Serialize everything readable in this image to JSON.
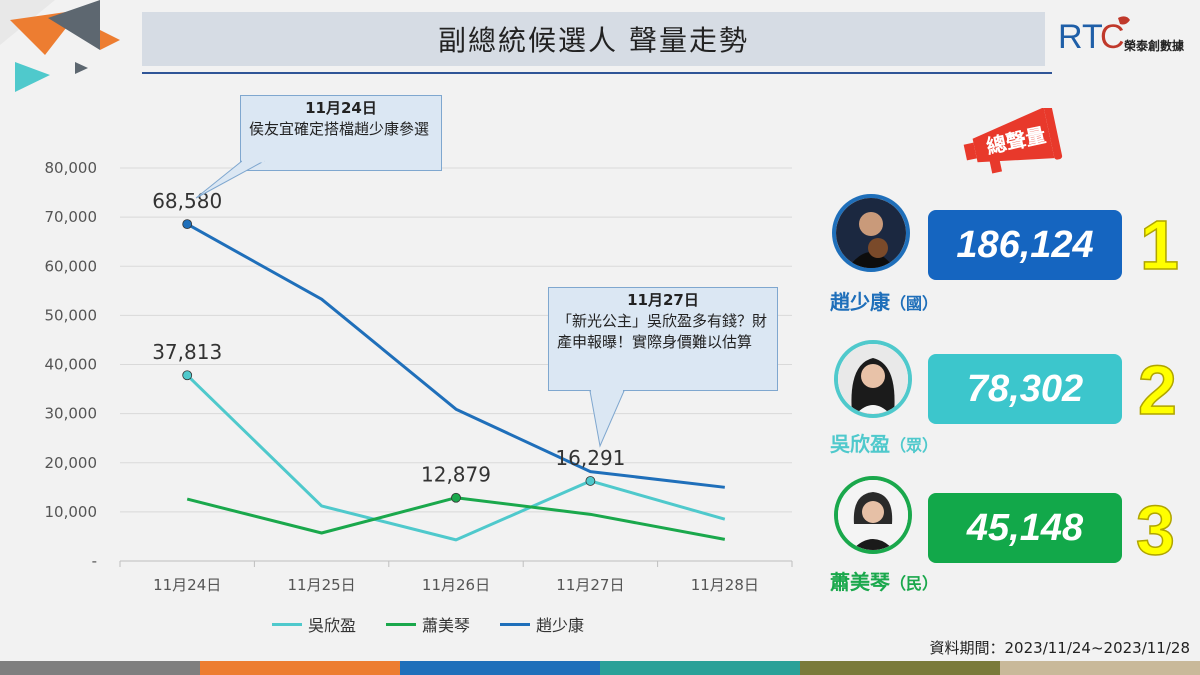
{
  "header": {
    "title": "副總統候選人  聲量走勢",
    "logo_text": "RTC",
    "logo_sub": "榮泰創數據"
  },
  "callouts": [
    {
      "date": "11月24日",
      "text": "侯友宜確定搭檔趙少康參選"
    },
    {
      "date": "11月27日",
      "text": "「新光公主」吳欣盈多有錢？財產申報曝！實際身價難以估算"
    }
  ],
  "chart_data": {
    "type": "line",
    "categories": [
      "11月24日",
      "11月25日",
      "11月26日",
      "11月27日",
      "11月28日"
    ],
    "series": [
      {
        "name": "吳欣盈",
        "values": [
          37813,
          11200,
          4300,
          16291,
          8500
        ],
        "color": "#4fc9cc"
      },
      {
        "name": "蕭美琴",
        "values": [
          12600,
          5700,
          12879,
          9500,
          4400
        ],
        "color": "#1aa84c"
      },
      {
        "name": "趙少康",
        "values": [
          68580,
          53300,
          30900,
          18200,
          15000
        ],
        "color": "#1f6fba"
      }
    ],
    "yticks": [
      "-",
      "10,000",
      "20,000",
      "30,000",
      "40,000",
      "50,000",
      "60,000",
      "70,000",
      "80,000"
    ],
    "ylim": [
      0,
      80000
    ],
    "grid": true,
    "data_labels": [
      {
        "series": 2,
        "index": 0,
        "text": "68,580"
      },
      {
        "series": 0,
        "index": 0,
        "text": "37,813"
      },
      {
        "series": 1,
        "index": 2,
        "text": "12,879"
      },
      {
        "series": 0,
        "index": 3,
        "text": "16,291"
      }
    ],
    "legend_position": "bottom"
  },
  "volume_badge": "總聲量",
  "ranking": [
    {
      "rank": "1",
      "name": "趙少康",
      "party": "（國）",
      "value": "186,124",
      "color": "#1f6fba",
      "box_color": "#1565c0"
    },
    {
      "rank": "2",
      "name": "吳欣盈",
      "party": "（眾）",
      "value": "78,302",
      "color": "#4fc9cc",
      "box_color": "#3cc6cc"
    },
    {
      "rank": "3",
      "name": "蕭美琴",
      "party": "（民）",
      "value": "45,148",
      "color": "#1aa84c",
      "box_color": "#12a84a"
    }
  ],
  "source": "資料期間：2023/11/24~2023/11/28",
  "footer_colors": [
    "#7f7f7f",
    "#ed7d31",
    "#1f6fba",
    "#2aa198",
    "#7a7a3a",
    "#c9b99a"
  ]
}
